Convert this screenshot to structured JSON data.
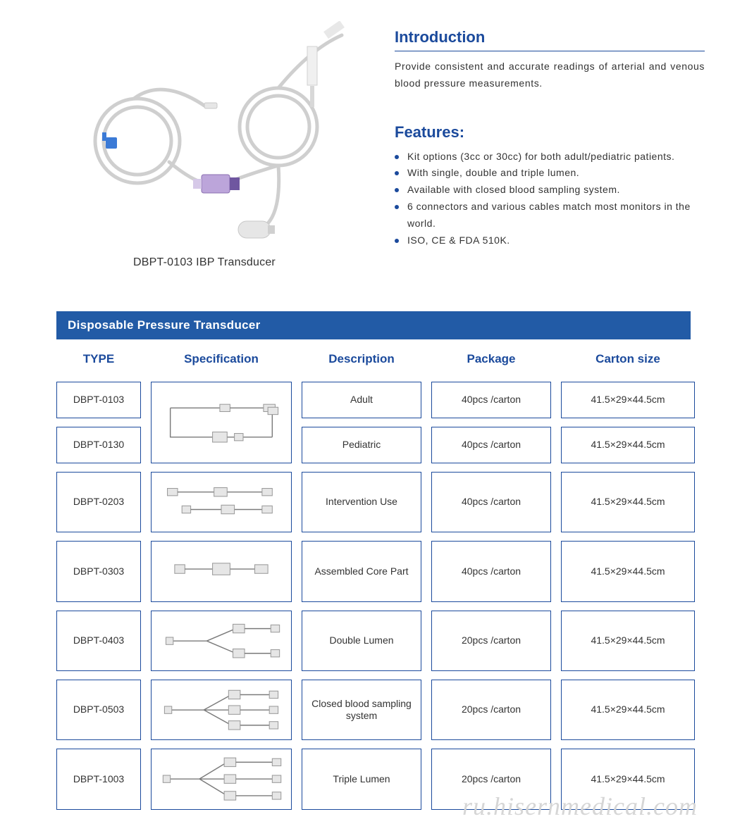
{
  "colors": {
    "heading_blue": "#1b4a9c",
    "bar_blue": "#225ba6",
    "cell_border": "#1b4a9c",
    "body_text": "#333333",
    "watermark": "#d6d6d6",
    "background": "#ffffff",
    "bullet": "#1b4a9c"
  },
  "product": {
    "caption": "DBPT-0103 IBP Transducer"
  },
  "intro": {
    "title": "Introduction",
    "text": "Provide consistent and accurate readings of arterial and venous blood pressure measurements."
  },
  "features": {
    "title": "Features:",
    "items": [
      "Kit options (3cc or 30cc) for both adult/pediatric patients.",
      "With single, double and triple lumen.",
      "Available with closed blood sampling system.",
      "6 connectors and various cables match most monitors in the world.",
      "ISO, CE & FDA 510K."
    ]
  },
  "table": {
    "title": "Disposable Pressure Transducer",
    "columns": [
      "TYPE",
      "Specification",
      "Description",
      "Package",
      "Carton  size"
    ],
    "rows": [
      {
        "type": "DBPT-0103",
        "description": "Adult",
        "package": "40pcs /carton",
        "carton": "41.5×29×44.5cm",
        "spec_kind": "single_full",
        "spec_rowspan": 2
      },
      {
        "type": "DBPT-0130",
        "description": "Pediatric",
        "package": "40pcs /carton",
        "carton": "41.5×29×44.5cm",
        "spec_kind": null,
        "spec_rowspan": 0
      },
      {
        "type": "DBPT-0203",
        "description": "Intervention Use",
        "package": "40pcs /carton",
        "carton": "41.5×29×44.5cm",
        "spec_kind": "short_double",
        "spec_rowspan": 1
      },
      {
        "type": "DBPT-0303",
        "description": "Assembled Core Part",
        "package": "40pcs /carton",
        "carton": "41.5×29×44.5cm",
        "spec_kind": "core_part",
        "spec_rowspan": 1
      },
      {
        "type": "DBPT-0403",
        "description": "Double Lumen",
        "package": "20pcs /carton",
        "carton": "41.5×29×44.5cm",
        "spec_kind": "double_lumen",
        "spec_rowspan": 1
      },
      {
        "type": "DBPT-0503",
        "description": "Closed blood sampling system",
        "package": "20pcs /carton",
        "carton": "41.5×29×44.5cm",
        "spec_kind": "closed_sampling",
        "spec_rowspan": 1
      },
      {
        "type": "DBPT-1003",
        "description": "Triple Lumen",
        "package": "20pcs /carton",
        "carton": "41.5×29×44.5cm",
        "spec_kind": "triple_lumen",
        "spec_rowspan": 1
      }
    ]
  },
  "watermark": "ru.hisernmedical.com"
}
